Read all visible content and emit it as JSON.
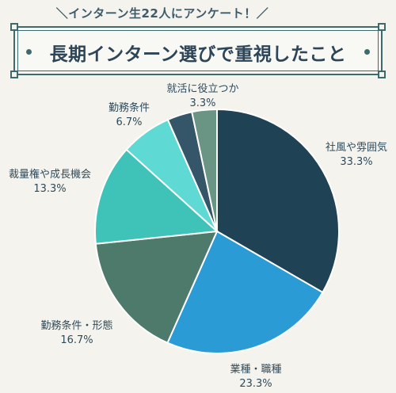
{
  "header": {
    "subtitle": "＼インターン生22人にアンケート！／",
    "title": "長期インターン選びで重視したこと"
  },
  "chart_data": {
    "type": "pie",
    "title": "長期インターン選びで重視したこと",
    "subtitle": "インターン生22人にアンケート！",
    "slices": [
      {
        "label": "社風や雰囲気",
        "value": 33.3,
        "display": "33.3%",
        "color": "#1f4354"
      },
      {
        "label": "業種・職種",
        "value": 23.3,
        "display": "23.3%",
        "color": "#2a9bd4"
      },
      {
        "label": "勤務条件・形態",
        "value": 16.7,
        "display": "16.7%",
        "color": "#4e7a6c"
      },
      {
        "label": "裁量権や成長機会",
        "value": 13.3,
        "display": "13.3%",
        "color": "#3fc3b8"
      },
      {
        "label": "勤務条件",
        "value": 6.7,
        "display": "6.7%",
        "color": "#5fd9d4"
      },
      {
        "label": "就活に役立つか",
        "value": 3.3,
        "display": "3.3%",
        "color": "#355668"
      },
      {
        "label": "",
        "value": 3.3,
        "display": "",
        "color": "#6a9484"
      }
    ],
    "start_angle": "12 o'clock",
    "direction": "clockwise"
  }
}
